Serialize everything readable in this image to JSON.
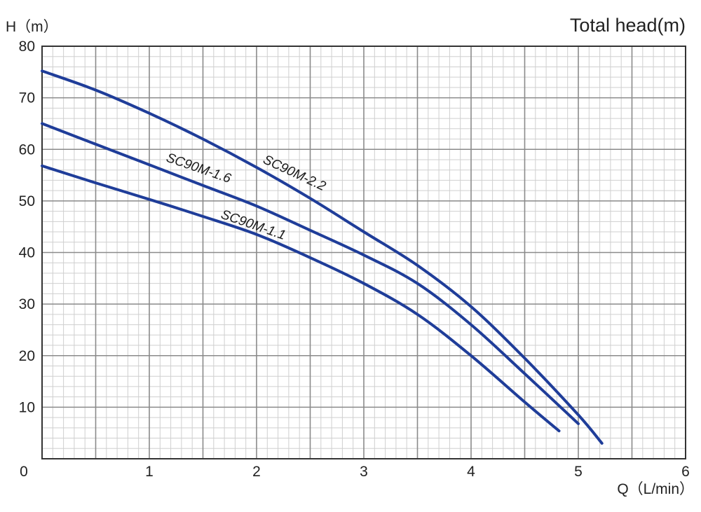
{
  "chart_data": {
    "type": "line",
    "title": "Total head(m)",
    "ylabel": "H（m）",
    "xlabel": "Q（L/min）",
    "xlim": [
      0,
      6
    ],
    "ylim": [
      0,
      80
    ],
    "x_ticks": [
      "0",
      "1",
      "2",
      "3",
      "4",
      "5",
      "6"
    ],
    "y_ticks": [
      "10",
      "20",
      "30",
      "40",
      "50",
      "60",
      "70",
      "80"
    ],
    "grid": true,
    "line_color": "#1f3d99",
    "series": [
      {
        "name": "SC90M-2.2",
        "points": [
          [
            0,
            75.2
          ],
          [
            0.5,
            71.5
          ],
          [
            1,
            67
          ],
          [
            1.5,
            62
          ],
          [
            2,
            56.5
          ],
          [
            2.5,
            50.5
          ],
          [
            3,
            44
          ],
          [
            3.5,
            37.5
          ],
          [
            4,
            29.5
          ],
          [
            4.5,
            19.5
          ],
          [
            5,
            8.5
          ],
          [
            5.22,
            3
          ]
        ]
      },
      {
        "name": "SC90M-1.6",
        "points": [
          [
            0,
            65
          ],
          [
            0.5,
            61
          ],
          [
            1,
            57
          ],
          [
            1.5,
            53
          ],
          [
            2,
            49
          ],
          [
            2.5,
            44.3
          ],
          [
            3,
            39.5
          ],
          [
            3.5,
            34
          ],
          [
            4,
            26
          ],
          [
            4.5,
            16.5
          ],
          [
            5,
            6.8
          ]
        ]
      },
      {
        "name": "SC90M-1.1",
        "points": [
          [
            0,
            56.8
          ],
          [
            0.5,
            53.5
          ],
          [
            1,
            50.3
          ],
          [
            1.5,
            47
          ],
          [
            2,
            43.5
          ],
          [
            2.5,
            39
          ],
          [
            3,
            34
          ],
          [
            3.5,
            28
          ],
          [
            4,
            20
          ],
          [
            4.5,
            11
          ],
          [
            4.82,
            5.4
          ]
        ]
      }
    ]
  }
}
